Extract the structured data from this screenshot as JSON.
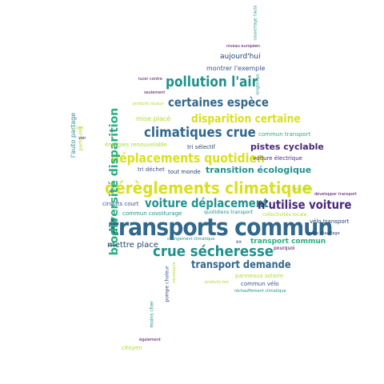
{
  "words": [
    {
      "text": "transports commun"
    },
    {
      "text": "dérèglements climatique"
    },
    {
      "text": "crue sécheresse"
    },
    {
      "text": "déplacements quotidien"
    },
    {
      "text": "climatiques crue"
    },
    {
      "text": "pollution l'air"
    },
    {
      "text": "certaines espèce"
    },
    {
      "text": "disparition certaine"
    },
    {
      "text": "voiture déplacement"
    },
    {
      "text": "n'utilise voiture"
    },
    {
      "text": "biodiversité disparition"
    },
    {
      "text": "transport demande"
    },
    {
      "text": "pistes cyclable"
    },
    {
      "text": "transition écologique"
    },
    {
      "text": "mettre place"
    },
    {
      "text": "transport commun"
    },
    {
      "text": "aujourd'hui"
    },
    {
      "text": "montrer l'exemple"
    },
    {
      "text": "niveau européen"
    },
    {
      "text": "couvertage l'auto"
    },
    {
      "text": "lucer contre"
    },
    {
      "text": "seulement"
    },
    {
      "text": "produits locaux"
    },
    {
      "text": "longtemps"
    },
    {
      "text": "mise placé"
    },
    {
      "text": "énergies renouvelable"
    },
    {
      "text": "tri sélectif"
    },
    {
      "text": "commun transport"
    },
    {
      "text": "voiture électrique"
    },
    {
      "text": "tri déchet"
    },
    {
      "text": "tout monde"
    },
    {
      "text": "l'auto partage"
    },
    {
      "text": "particulier"
    },
    {
      "text": "sujet"
    },
    {
      "text": "voir"
    },
    {
      "text": "fais déjà"
    },
    {
      "text": "développer transport"
    },
    {
      "text": "circuits court"
    },
    {
      "text": "commun covoiturage"
    },
    {
      "text": "quotidiens transport"
    },
    {
      "text": "collectivités locale"
    },
    {
      "text": "vélo transport"
    },
    {
      "text": "changement climatique"
    },
    {
      "text": "mode chauffage"
    },
    {
      "text": "ex"
    },
    {
      "text": "pourquoi"
    },
    {
      "text": "panneaux solaire"
    },
    {
      "text": "nécessaire"
    },
    {
      "text": "pompe chaleur"
    },
    {
      "text": "produits bio"
    },
    {
      "text": "commun vélo"
    },
    {
      "text": "réchauffement climatique"
    },
    {
      "text": "moins cher"
    },
    {
      "text": "également"
    },
    {
      "text": "citoyen"
    }
  ]
}
